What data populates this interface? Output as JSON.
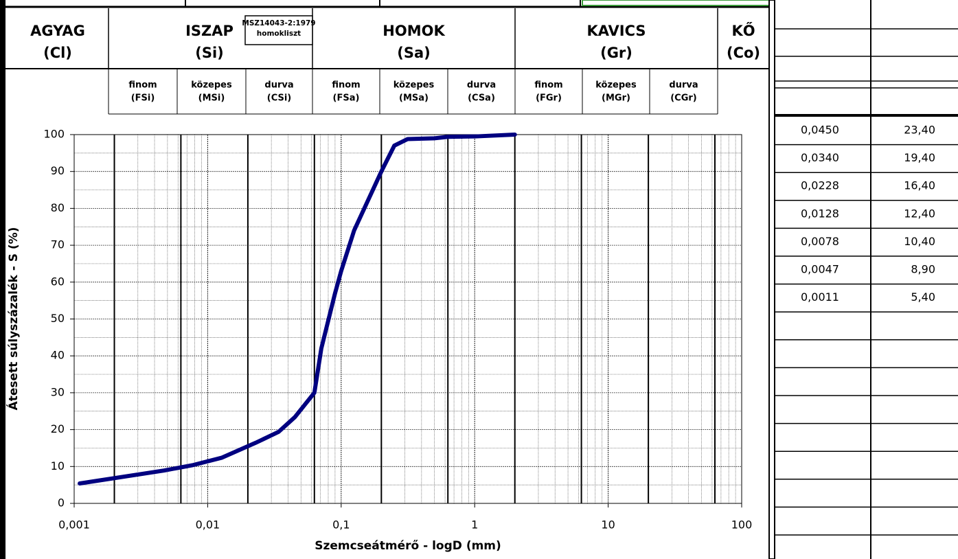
{
  "chart_data": {
    "type": "line",
    "y_label": "Átesett súlyszázalék - S (%)",
    "x_label": "Szemcseátmérő - logD (mm)",
    "x_scale": "log",
    "x": [
      0.0011,
      0.0047,
      0.0078,
      0.0128,
      0.0228,
      0.034,
      0.045,
      0.063,
      0.071,
      0.09,
      0.1,
      0.125,
      0.2,
      0.25,
      0.315,
      0.5,
      0.63,
      1,
      2
    ],
    "series": [
      {
        "color": "#000080",
        "values": [
          5.4,
          8.9,
          10.4,
          12.4,
          16.4,
          19.4,
          23.4,
          30,
          42,
          57,
          63,
          74,
          90,
          97,
          98.8,
          99,
          99.4,
          99.5,
          100
        ]
      }
    ],
    "xlim": [
      0.001,
      100
    ],
    "xticks": [
      {
        "value": 0.001,
        "label": "0,001"
      },
      {
        "value": 0.01,
        "label": "0,01"
      },
      {
        "value": 0.1,
        "label": "0,1"
      },
      1,
      10,
      100
    ],
    "ylim": [
      0,
      100
    ],
    "yticks": [
      0,
      10,
      20,
      30,
      40,
      50,
      60,
      70,
      80,
      90,
      100
    ],
    "boundaries": [
      0.002,
      0.0063,
      0.02,
      0.063,
      0.2,
      0.63,
      2,
      6.3,
      20,
      63
    ],
    "grid": true
  },
  "header": {
    "main": [
      {
        "name": "AGYAG",
        "code": "(Cl)"
      },
      {
        "name": "ISZAP",
        "code": "(Si)"
      },
      {
        "name": "HOMOK",
        "code": "(Sa)"
      },
      {
        "name": "KAVICS",
        "code": "(Gr)"
      },
      {
        "name": "KŐ",
        "code": "(Co)"
      }
    ],
    "note": [
      "MSZ14043-2:1979",
      "homokliszt"
    ],
    "sub": [
      {
        "name": "finom",
        "code": "(FSi)"
      },
      {
        "name": "közepes",
        "code": "(MSi)"
      },
      {
        "name": "durva",
        "code": "(CSi)"
      },
      {
        "name": "finom",
        "code": "(FSa)"
      },
      {
        "name": "közepes",
        "code": "(MSa)"
      },
      {
        "name": "durva",
        "code": "(CSa)"
      },
      {
        "name": "finom",
        "code": "(FGr)"
      },
      {
        "name": "közepes",
        "code": "(MGr)"
      },
      {
        "name": "durva",
        "code": "(CGr)"
      }
    ]
  },
  "side_table": {
    "rows": [
      [
        "0,0450",
        "23,40"
      ],
      [
        "0,0340",
        "19,40"
      ],
      [
        "0,0228",
        "16,40"
      ],
      [
        "0,0128",
        "12,40"
      ],
      [
        "0,0078",
        "10,40"
      ],
      [
        "0,0047",
        "8,90"
      ],
      [
        "0,0011",
        "5,40"
      ]
    ]
  }
}
